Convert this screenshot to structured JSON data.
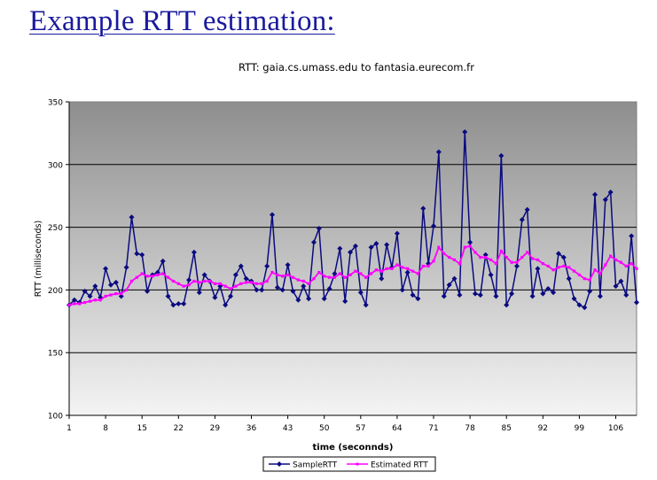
{
  "slide": {
    "title": "Example RTT estimation:"
  },
  "chart_data": {
    "type": "line",
    "title": "RTT: gaia.cs.umass.edu to fantasia.eurecom.fr",
    "xlabel": "time (seconnds)",
    "ylabel": "RTT (milliseconds)",
    "ylim": [
      100,
      350
    ],
    "yticks": [
      100,
      150,
      200,
      250,
      300,
      350
    ],
    "xrange": [
      1,
      110
    ],
    "xticks": [
      1,
      8,
      15,
      22,
      29,
      36,
      43,
      50,
      57,
      64,
      71,
      78,
      85,
      92,
      99,
      106
    ],
    "grid": true,
    "legend_position": "bottom",
    "x": [
      1,
      2,
      3,
      4,
      5,
      6,
      7,
      8,
      9,
      10,
      11,
      12,
      13,
      14,
      15,
      16,
      17,
      18,
      19,
      20,
      21,
      22,
      23,
      24,
      25,
      26,
      27,
      28,
      29,
      30,
      31,
      32,
      33,
      34,
      35,
      36,
      37,
      38,
      39,
      40,
      41,
      42,
      43,
      44,
      45,
      46,
      47,
      48,
      49,
      50,
      51,
      52,
      53,
      54,
      55,
      56,
      57,
      58,
      59,
      60,
      61,
      62,
      63,
      64,
      65,
      66,
      67,
      68,
      69,
      70,
      71,
      72,
      73,
      74,
      75,
      76,
      77,
      78,
      79,
      80,
      81,
      82,
      83,
      84,
      85,
      86,
      87,
      88,
      89,
      90,
      91,
      92,
      93,
      94,
      95,
      96,
      97,
      98,
      99,
      100,
      101,
      102,
      103,
      104,
      105,
      106,
      107,
      108,
      109,
      110
    ],
    "series": [
      {
        "name": "SampleRTT",
        "color": "#0a0a80",
        "marker": "diamond",
        "values": [
          188,
          192,
          190,
          199,
          195,
          203,
          194,
          217,
          204,
          206,
          195,
          218,
          258,
          229,
          228,
          199,
          212,
          214,
          223,
          195,
          188,
          189,
          189,
          208,
          230,
          198,
          212,
          207,
          194,
          203,
          188,
          195,
          212,
          219,
          209,
          207,
          200,
          200,
          219,
          260,
          202,
          200,
          220,
          199,
          192,
          203,
          193,
          238,
          249,
          193,
          201,
          213,
          233,
          191,
          230,
          235,
          198,
          188,
          234,
          237,
          209,
          236,
          218,
          245,
          200,
          214,
          196,
          193,
          265,
          221,
          251,
          310,
          195,
          204,
          209,
          196,
          326,
          238,
          197,
          196,
          228,
          212,
          195,
          307,
          188,
          197,
          219,
          256,
          264,
          195,
          217,
          197,
          201,
          198,
          229,
          226,
          209,
          193,
          188,
          186,
          199,
          276,
          195,
          272,
          278,
          203,
          207,
          196,
          243,
          190
        ]
      },
      {
        "name": "Estimated RTT",
        "color": "#ff00ff",
        "marker": "square",
        "values": [
          188,
          189,
          189,
          190,
          191,
          192,
          192,
          195,
          196,
          197,
          197,
          200,
          207,
          210,
          213,
          211,
          211,
          212,
          213,
          210,
          207,
          205,
          203,
          204,
          207,
          206,
          207,
          207,
          205,
          205,
          203,
          201,
          203,
          205,
          206,
          206,
          205,
          205,
          207,
          214,
          212,
          211,
          212,
          210,
          208,
          207,
          205,
          209,
          214,
          211,
          210,
          210,
          213,
          210,
          212,
          215,
          213,
          210,
          213,
          216,
          215,
          217,
          217,
          220,
          218,
          217,
          215,
          213,
          219,
          219,
          223,
          234,
          229,
          226,
          224,
          221,
          234,
          235,
          230,
          226,
          226,
          224,
          221,
          231,
          226,
          222,
          222,
          226,
          230,
          225,
          224,
          221,
          219,
          216,
          218,
          219,
          218,
          215,
          212,
          209,
          208,
          216,
          213,
          220,
          227,
          224,
          222,
          219,
          221,
          217
        ]
      }
    ]
  }
}
